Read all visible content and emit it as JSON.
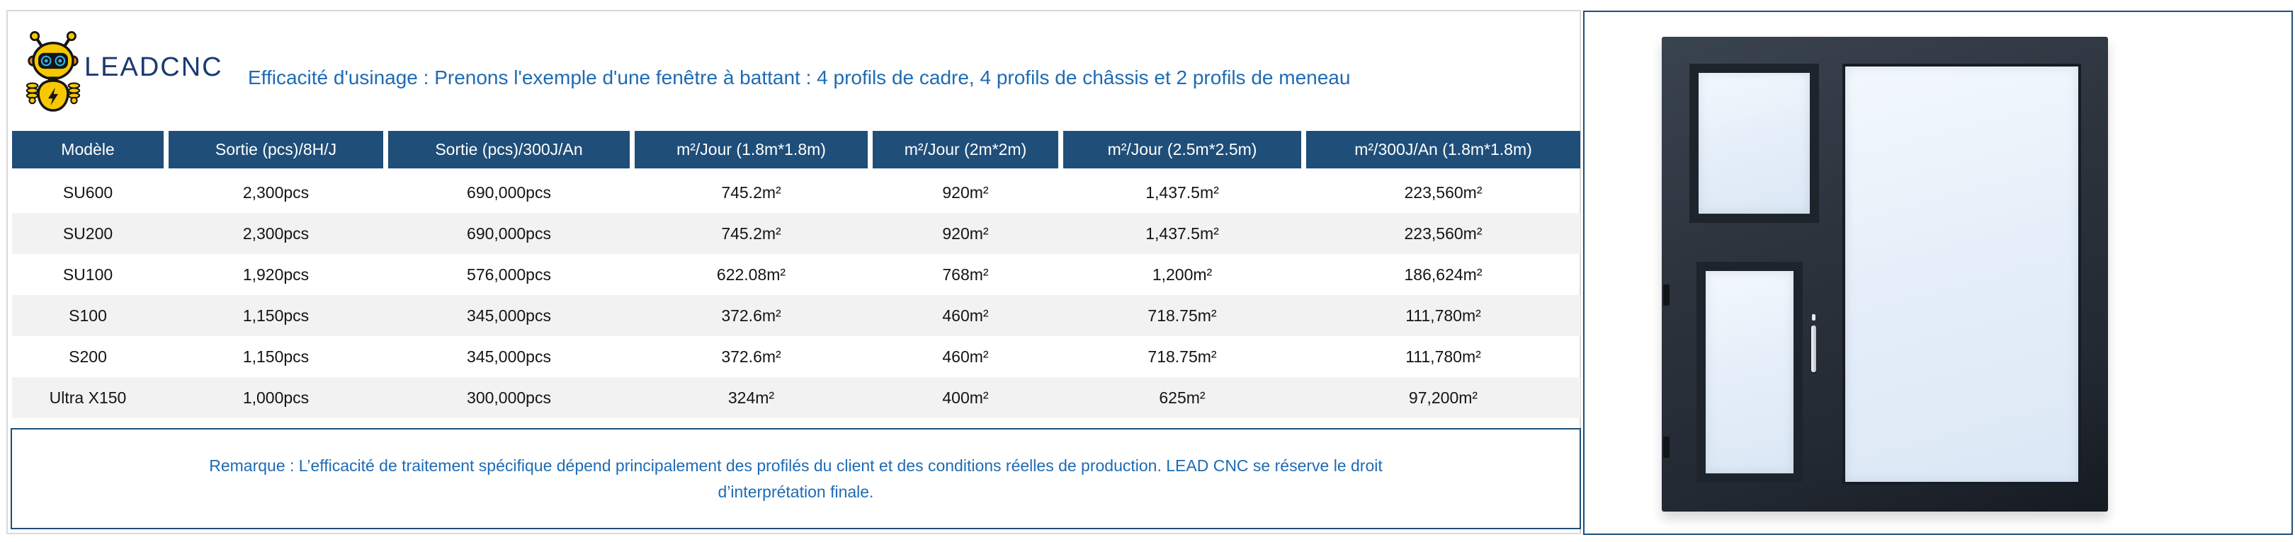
{
  "brand": {
    "name": "LEADCNC"
  },
  "title": "Efficacité d'usinage : Prenons l'exemple d'une fenêtre à battant : 4 profils de cadre, 4 profils de châssis et 2 profils de meneau",
  "table": {
    "columns": [
      "Modèle",
      "Sortie (pcs)/8H/J",
      "Sortie (pcs)/300J/An",
      "m²/Jour (1.8m*1.8m)",
      "m²/Jour (2m*2m)",
      "m²/Jour (2.5m*2.5m)",
      "m²/300J/An (1.8m*1.8m)"
    ],
    "rows": [
      [
        "SU600",
        "2,300pcs",
        "690,000pcs",
        "745.2m²",
        "920m²",
        "1,437.5m²",
        "223,560m²"
      ],
      [
        "SU200",
        "2,300pcs",
        "690,000pcs",
        "745.2m²",
        "920m²",
        "1,437.5m²",
        "223,560m²"
      ],
      [
        "SU100",
        "1,920pcs",
        "576,000pcs",
        "622.08m²",
        "768m²",
        "1,200m²",
        "186,624m²"
      ],
      [
        "S100",
        "1,150pcs",
        "345,000pcs",
        "372.6m²",
        "460m²",
        "718.75m²",
        "111,780m²"
      ],
      [
        "S200",
        "1,150pcs",
        "345,000pcs",
        "372.6m²",
        "460m²",
        "718.75m²",
        "111,780m²"
      ],
      [
        "Ultra X150",
        "1,000pcs",
        "300,000pcs",
        "324m²",
        "400m²",
        "625m²",
        "97,200m²"
      ]
    ]
  },
  "remark": "Remarque : L’efficacité de traitement spécifique dépend principalement des profilés du client et des conditions réelles de production. LEAD CNC se réserve le droit d’interprétation finale.",
  "image": {
    "alt": "fenêtre à battant"
  },
  "colors": {
    "header_bg": "#1F4E79",
    "row_stripe": "#F2F2F2",
    "accent_text_blue": "#1E6BB3",
    "box_border_blue": "#1F4E79",
    "brand_navy": "#1B3A70",
    "logo_yellow": "#F7C800",
    "logo_cyan": "#2AB5EA",
    "window_frame": "#2B323C"
  }
}
